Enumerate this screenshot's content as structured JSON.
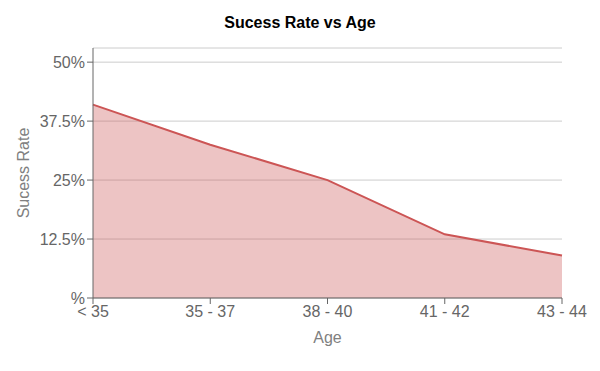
{
  "chart_data": {
    "type": "area",
    "title": "Sucess Rate vs Age",
    "xlabel": "Age",
    "ylabel": "Sucess Rate",
    "categories": [
      "< 35",
      "35 - 37",
      "38 - 40",
      "41 - 42",
      "43 - 44"
    ],
    "values": [
      0.41,
      0.325,
      0.25,
      0.135,
      0.09
    ],
    "color": "#cc5555",
    "ylim": [
      0,
      0.53
    ],
    "yticks": [
      {
        "value": 0,
        "label": "%"
      },
      {
        "value": 0.125,
        "label": "12.5%"
      },
      {
        "value": 0.25,
        "label": "25%"
      },
      {
        "value": 0.375,
        "label": "37.5%"
      },
      {
        "value": 0.5,
        "label": "50%"
      }
    ],
    "grid": true
  }
}
